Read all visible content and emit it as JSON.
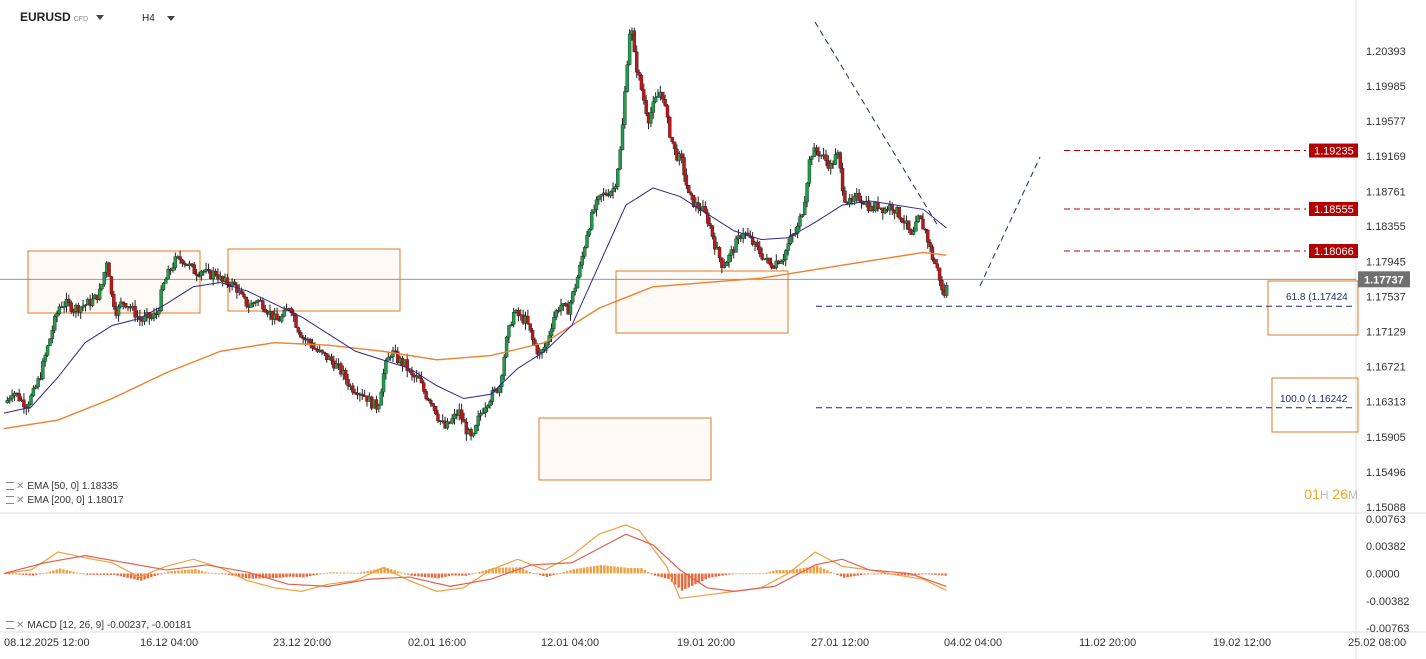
{
  "header": {
    "symbol": "EURUSD",
    "symbol_badge": "CFD",
    "timeframe": "H4"
  },
  "indicators": {
    "ema50_label": "EMA [50, 0]",
    "ema50_value": "1.18335",
    "ema200_label": "EMA [200, 0]",
    "ema200_value": "1.18017",
    "macd_label": "MACD [12, 26, 9]",
    "macd_value": "-0.00237, -0.00181",
    "ema50_color": "#2b2a8a",
    "ema200_color": "#f07f2e"
  },
  "timer": {
    "h": "01",
    "h_unit": "H",
    "m": "26",
    "m_unit": "M"
  },
  "chart_data": {
    "type": "candlestick",
    "symbol": "EURUSD",
    "timeframe": "H4",
    "price_axis": [
      "1.20393",
      "1.19985",
      "1.19577",
      "1.19169",
      "1.18761",
      "1.18355",
      "1.17945",
      "1.17537",
      "1.17129",
      "1.16721",
      "1.16313",
      "1.15905",
      "1.15496",
      "1.15088"
    ],
    "macd_axis": [
      "0.00763",
      "0.00382",
      "0.0000",
      "-0.00382",
      "-0.00763"
    ],
    "time_axis": [
      "08.12.2025 12:00",
      "16.12 04:00",
      "23.12 20:00",
      "02.01 16:00",
      "12.01 04:00",
      "19.01 20:00",
      "27.01 12:00",
      "04.02 04:00",
      "11.02 20:00",
      "19.02 12:00",
      "25.02 08:00"
    ],
    "current_price": "1.17737",
    "levels": [
      {
        "label": "1.19235",
        "price": 1.19235,
        "color": "#c00000"
      },
      {
        "label": "1.18555",
        "price": 1.18555,
        "color": "#c00000"
      },
      {
        "label": "1.18066",
        "price": 1.18066,
        "color": "#c00000"
      }
    ],
    "fib": [
      {
        "label": "61.8 (1.17424",
        "price": 1.17424
      },
      {
        "label": "100.0 (1.16242",
        "price": 1.16242
      }
    ],
    "price_path": [
      [
        0,
        1.163
      ],
      [
        5,
        1.1645
      ],
      [
        10,
        1.1635
      ],
      [
        15,
        1.1628
      ],
      [
        20,
        1.164
      ],
      [
        25,
        1.166
      ],
      [
        30,
        1.169
      ],
      [
        35,
        1.172
      ],
      [
        40,
        1.1745
      ],
      [
        45,
        1.1745
      ],
      [
        50,
        1.174
      ],
      [
        55,
        1.1742
      ],
      [
        60,
        1.1745
      ],
      [
        65,
        1.175
      ],
      [
        70,
        1.176
      ],
      [
        75,
        1.18
      ],
      [
        78,
        1.1755
      ],
      [
        82,
        1.1735
      ],
      [
        86,
        1.1748
      ],
      [
        90,
        1.1745
      ],
      [
        95,
        1.1735
      ],
      [
        100,
        1.1725
      ],
      [
        105,
        1.173
      ],
      [
        108,
        1.1728
      ],
      [
        112,
        1.1735
      ],
      [
        116,
        1.1765
      ],
      [
        120,
        1.178
      ],
      [
        125,
        1.1795
      ],
      [
        130,
        1.1798
      ],
      [
        135,
        1.179
      ],
      [
        140,
        1.1782
      ],
      [
        145,
        1.1785
      ],
      [
        150,
        1.1778
      ],
      [
        155,
        1.1782
      ],
      [
        160,
        1.177
      ],
      [
        165,
        1.177
      ],
      [
        170,
        1.1765
      ],
      [
        175,
        1.175
      ],
      [
        180,
        1.1742
      ],
      [
        185,
        1.175
      ],
      [
        190,
        1.1745
      ],
      [
        195,
        1.1735
      ],
      [
        200,
        1.1725
      ],
      [
        205,
        1.173
      ],
      [
        210,
        1.1745
      ],
      [
        215,
        1.172
      ],
      [
        220,
        1.1705
      ],
      [
        225,
        1.17
      ],
      [
        230,
        1.169
      ],
      [
        235,
        1.1685
      ],
      [
        240,
        1.168
      ],
      [
        245,
        1.1672
      ],
      [
        250,
        1.1662
      ],
      [
        255,
        1.1648
      ],
      [
        260,
        1.1645
      ],
      [
        265,
        1.164
      ],
      [
        270,
        1.163
      ],
      [
        275,
        1.1625
      ],
      [
        280,
        1.167
      ],
      [
        285,
        1.169
      ],
      [
        290,
        1.168
      ],
      [
        295,
        1.1675
      ],
      [
        300,
        1.166
      ],
      [
        305,
        1.1658
      ],
      [
        310,
        1.164
      ],
      [
        315,
        1.1632
      ],
      [
        320,
        1.1612
      ],
      [
        325,
        1.16
      ],
      [
        330,
        1.161
      ],
      [
        335,
        1.162
      ],
      [
        340,
        1.16
      ],
      [
        345,
        1.1585
      ],
      [
        350,
        1.1615
      ],
      [
        355,
        1.163
      ],
      [
        360,
        1.164
      ],
      [
        365,
        1.165
      ],
      [
        370,
        1.17
      ],
      [
        375,
        1.1735
      ],
      [
        380,
        1.173
      ],
      [
        385,
        1.1725
      ],
      [
        390,
        1.17
      ],
      [
        395,
        1.1685
      ],
      [
        400,
        1.17
      ],
      [
        405,
        1.173
      ],
      [
        410,
        1.1745
      ],
      [
        415,
        1.1735
      ],
      [
        420,
        1.176
      ],
      [
        425,
        1.179
      ],
      [
        430,
        1.183
      ],
      [
        435,
        1.1855
      ],
      [
        440,
        1.187
      ],
      [
        445,
        1.1875
      ],
      [
        450,
        1.188
      ],
      [
        455,
        1.193
      ],
      [
        460,
        1.204
      ],
      [
        462,
        1.2075
      ],
      [
        465,
        1.203
      ],
      [
        470,
        1.1995
      ],
      [
        475,
        1.196
      ],
      [
        480,
        1.198
      ],
      [
        485,
        1.1995
      ],
      [
        490,
        1.195
      ],
      [
        495,
        1.192
      ],
      [
        500,
        1.191
      ],
      [
        505,
        1.187
      ],
      [
        510,
        1.186
      ],
      [
        515,
        1.1855
      ],
      [
        520,
        1.184
      ],
      [
        525,
        1.181
      ],
      [
        530,
        1.179
      ],
      [
        535,
        1.18
      ],
      [
        540,
        1.1815
      ],
      [
        545,
        1.183
      ],
      [
        550,
        1.182
      ],
      [
        555,
        1.181
      ],
      [
        560,
        1.18
      ],
      [
        565,
        1.179
      ],
      [
        570,
        1.1795
      ],
      [
        575,
        1.18
      ],
      [
        580,
        1.182
      ],
      [
        585,
        1.183
      ],
      [
        590,
        1.186
      ],
      [
        595,
        1.192
      ],
      [
        600,
        1.1923
      ],
      [
        605,
        1.1915
      ],
      [
        610,
        1.1905
      ],
      [
        615,
        1.192
      ],
      [
        620,
        1.187
      ],
      [
        625,
        1.186
      ],
      [
        630,
        1.187
      ],
      [
        635,
        1.1865
      ],
      [
        640,
        1.1855
      ],
      [
        645,
        1.186
      ],
      [
        650,
        1.1855
      ],
      [
        655,
        1.186
      ],
      [
        660,
        1.185
      ],
      [
        665,
        1.184
      ],
      [
        670,
        1.182
      ],
      [
        675,
        1.1845
      ],
      [
        680,
        1.183
      ],
      [
        685,
        1.18
      ],
      [
        690,
        1.178
      ],
      [
        693,
        1.1752
      ],
      [
        697,
        1.177
      ]
    ],
    "ema50_path": [
      [
        0,
        1.1618
      ],
      [
        20,
        1.1625
      ],
      [
        40,
        1.166
      ],
      [
        60,
        1.17
      ],
      [
        80,
        1.172
      ],
      [
        100,
        1.1728
      ],
      [
        120,
        1.1745
      ],
      [
        140,
        1.1765
      ],
      [
        160,
        1.177
      ],
      [
        180,
        1.176
      ],
      [
        200,
        1.1745
      ],
      [
        220,
        1.173
      ],
      [
        240,
        1.171
      ],
      [
        260,
        1.169
      ],
      [
        280,
        1.168
      ],
      [
        300,
        1.167
      ],
      [
        320,
        1.165
      ],
      [
        340,
        1.1635
      ],
      [
        360,
        1.164
      ],
      [
        380,
        1.167
      ],
      [
        400,
        1.169
      ],
      [
        420,
        1.172
      ],
      [
        440,
        1.179
      ],
      [
        460,
        1.186
      ],
      [
        480,
        1.188
      ],
      [
        500,
        1.187
      ],
      [
        520,
        1.185
      ],
      [
        540,
        1.183
      ],
      [
        560,
        1.182
      ],
      [
        580,
        1.1822
      ],
      [
        600,
        1.184
      ],
      [
        620,
        1.186
      ],
      [
        640,
        1.1865
      ],
      [
        660,
        1.186
      ],
      [
        680,
        1.1855
      ],
      [
        697,
        1.18335
      ]
    ],
    "ema200_path": [
      [
        0,
        1.16
      ],
      [
        40,
        1.161
      ],
      [
        80,
        1.1635
      ],
      [
        120,
        1.1665
      ],
      [
        160,
        1.169
      ],
      [
        200,
        1.17
      ],
      [
        240,
        1.1697
      ],
      [
        280,
        1.169
      ],
      [
        320,
        1.168
      ],
      [
        360,
        1.1685
      ],
      [
        400,
        1.17
      ],
      [
        440,
        1.174
      ],
      [
        480,
        1.1765
      ],
      [
        520,
        1.177
      ],
      [
        560,
        1.1775
      ],
      [
        600,
        1.1785
      ],
      [
        640,
        1.1795
      ],
      [
        680,
        1.1805
      ],
      [
        697,
        1.18017
      ]
    ],
    "macd_line_path": [
      [
        0,
        0
      ],
      [
        20,
        0.0005
      ],
      [
        40,
        0.003
      ],
      [
        60,
        0.0022
      ],
      [
        80,
        0.0015
      ],
      [
        100,
        -0.0005
      ],
      [
        120,
        0.001
      ],
      [
        140,
        0.002
      ],
      [
        160,
        0.0008
      ],
      [
        180,
        -0.001
      ],
      [
        200,
        -0.002
      ],
      [
        220,
        -0.0025
      ],
      [
        240,
        -0.0015
      ],
      [
        260,
        -0.001
      ],
      [
        280,
        0.0008
      ],
      [
        300,
        -0.001
      ],
      [
        320,
        -0.0025
      ],
      [
        340,
        -0.002
      ],
      [
        360,
        0.0005
      ],
      [
        380,
        0.002
      ],
      [
        400,
        0.0005
      ],
      [
        420,
        0.0025
      ],
      [
        440,
        0.0055
      ],
      [
        460,
        0.0068
      ],
      [
        470,
        0.006
      ],
      [
        490,
        0.001
      ],
      [
        500,
        -0.0035
      ],
      [
        520,
        -0.003
      ],
      [
        540,
        -0.0025
      ],
      [
        560,
        -0.002
      ],
      [
        580,
        0.0
      ],
      [
        600,
        0.003
      ],
      [
        620,
        0.001
      ],
      [
        640,
        0.0005
      ],
      [
        660,
        -0.0002
      ],
      [
        680,
        -0.0008
      ],
      [
        697,
        -0.00237
      ]
    ],
    "macd_signal_path": [
      [
        0,
        0
      ],
      [
        30,
        0.0015
      ],
      [
        60,
        0.0025
      ],
      [
        90,
        0.0015
      ],
      [
        120,
        0.0005
      ],
      [
        150,
        0.0012
      ],
      [
        180,
        0.0002
      ],
      [
        210,
        -0.0015
      ],
      [
        240,
        -0.0018
      ],
      [
        270,
        -0.0008
      ],
      [
        300,
        -0.0005
      ],
      [
        330,
        -0.0018
      ],
      [
        360,
        -0.0008
      ],
      [
        390,
        0.0012
      ],
      [
        420,
        0.0015
      ],
      [
        440,
        0.0035
      ],
      [
        460,
        0.0055
      ],
      [
        480,
        0.004
      ],
      [
        500,
        0.0005
      ],
      [
        520,
        -0.002
      ],
      [
        540,
        -0.0025
      ],
      [
        570,
        -0.0018
      ],
      [
        600,
        0.0012
      ],
      [
        620,
        0.002
      ],
      [
        640,
        0.0005
      ],
      [
        670,
        0.0
      ],
      [
        697,
        -0.00181
      ]
    ]
  }
}
